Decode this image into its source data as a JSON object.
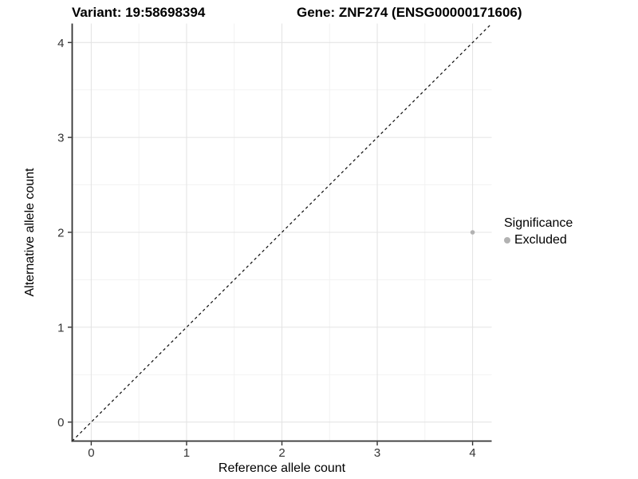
{
  "titles": {
    "variant": "Variant: 19:58698394",
    "gene": "Gene: ZNF274 (ENSG00000171606)"
  },
  "axes": {
    "x": {
      "label": "Reference allele count",
      "ticks": [
        "0",
        "1",
        "2",
        "3",
        "4"
      ]
    },
    "y": {
      "label": "Alternative allele count",
      "ticks": [
        "0",
        "1",
        "2",
        "3",
        "4"
      ]
    }
  },
  "legend": {
    "title": "Significance",
    "items": [
      {
        "label": "Excluded",
        "color": "#b2b2b2"
      }
    ]
  },
  "colors": {
    "background": "#ffffff",
    "axis_line": "#333333",
    "tick_label": "#333333",
    "grid_major": "#e4e4e4",
    "grid_minor": "#f1f1f1",
    "identity_line": "#0a0a0a",
    "point": "#b2b2b2"
  },
  "chart_data": {
    "type": "scatter",
    "title": "Variant: 19:58698394 | Gene: ZNF274 (ENSG00000171606)",
    "xlabel": "Reference allele count",
    "ylabel": "Alternative allele count",
    "xlim": [
      -0.2,
      4.2
    ],
    "ylim": [
      -0.2,
      4.2
    ],
    "xticks": [
      0,
      1,
      2,
      3,
      4
    ],
    "yticks": [
      0,
      1,
      2,
      3,
      4
    ],
    "grid": "major and minor, minor at 0.5 steps",
    "legend_position": "right, vertically centered",
    "series": [
      {
        "name": "Excluded",
        "color": "#b2b2b2",
        "points": [
          {
            "x": 4,
            "y": 2
          }
        ]
      }
    ],
    "reference_line": {
      "slope": 1,
      "intercept": 0,
      "linetype": "dashed",
      "color": "#0a0a0a"
    }
  }
}
